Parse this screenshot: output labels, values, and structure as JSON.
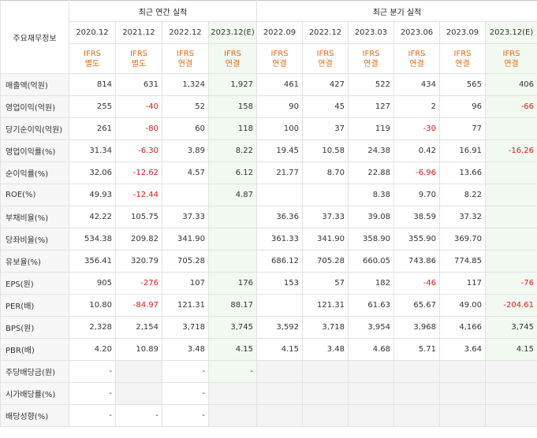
{
  "header": {
    "title": "주요재무정보",
    "annual_group": "최근 연간 실적",
    "quarter_group": "최근 분기 실적"
  },
  "columns": [
    {
      "period": "2020.12",
      "ifrs": "IFRS",
      "basis": "별도"
    },
    {
      "period": "2021.12",
      "ifrs": "IFRS",
      "basis": "별도"
    },
    {
      "period": "2022.12",
      "ifrs": "IFRS",
      "basis": "연결"
    },
    {
      "period": "2023.12(E)",
      "ifrs": "IFRS",
      "basis": "연결"
    },
    {
      "period": "2022.09",
      "ifrs": "IFRS",
      "basis": "연결"
    },
    {
      "period": "2022.12",
      "ifrs": "IFRS",
      "basis": "연결"
    },
    {
      "period": "2023.03",
      "ifrs": "IFRS",
      "basis": "연결"
    },
    {
      "period": "2023.06",
      "ifrs": "IFRS",
      "basis": "연결"
    },
    {
      "period": "2023.09",
      "ifrs": "IFRS",
      "basis": "연결"
    },
    {
      "period": "2023.12(E)",
      "ifrs": "IFRS",
      "basis": "연결"
    }
  ],
  "rows": [
    {
      "label": "매출액(억원)",
      "values": [
        "814",
        "631",
        "1,324",
        "1,927",
        "461",
        "427",
        "522",
        "434",
        "565",
        "406"
      ]
    },
    {
      "label": "영업이익(억원)",
      "values": [
        "255",
        "-40",
        "52",
        "158",
        "90",
        "45",
        "127",
        "2",
        "96",
        "-66"
      ]
    },
    {
      "label": "당기순이익(억원)",
      "values": [
        "261",
        "-80",
        "60",
        "118",
        "100",
        "37",
        "119",
        "-30",
        "77",
        ""
      ]
    },
    {
      "label": "영업이익률(%)",
      "values": [
        "31.34",
        "-6.30",
        "3.89",
        "8.22",
        "19.45",
        "10.58",
        "24.38",
        "0.42",
        "16.91",
        "-16.26"
      ]
    },
    {
      "label": "순이익률(%)",
      "values": [
        "32.06",
        "-12.62",
        "4.57",
        "6.12",
        "21.77",
        "8.70",
        "22.88",
        "-6.96",
        "13.66",
        ""
      ]
    },
    {
      "label": "ROE(%)",
      "values": [
        "49.93",
        "-12.44",
        "",
        "4.87",
        "",
        "",
        "8.38",
        "9.70",
        "8.22",
        ""
      ]
    },
    {
      "label": "부채비율(%)",
      "values": [
        "42.22",
        "105.75",
        "37.33",
        "",
        "36.36",
        "37.33",
        "39.08",
        "38.59",
        "37.32",
        ""
      ]
    },
    {
      "label": "당좌비율(%)",
      "values": [
        "534.38",
        "209.82",
        "341.90",
        "",
        "361.33",
        "341.90",
        "358.90",
        "355.90",
        "369.70",
        ""
      ]
    },
    {
      "label": "유보율(%)",
      "values": [
        "356.41",
        "320.79",
        "705.28",
        "",
        "686.12",
        "705.28",
        "660.05",
        "743.86",
        "774.85",
        ""
      ]
    },
    {
      "label": "EPS(원)",
      "values": [
        "905",
        "-276",
        "107",
        "176",
        "153",
        "57",
        "182",
        "-46",
        "117",
        "-76"
      ]
    },
    {
      "label": "PER(배)",
      "values": [
        "10.80",
        "-84.97",
        "121.31",
        "88.17",
        "",
        "121.31",
        "61.63",
        "65.67",
        "49.00",
        "-204.61"
      ]
    },
    {
      "label": "BPS(원)",
      "values": [
        "2,328",
        "2,154",
        "3,718",
        "3,745",
        "3,592",
        "3,718",
        "3,954",
        "3,968",
        "4,166",
        "3,745"
      ]
    },
    {
      "label": "PBR(배)",
      "values": [
        "4.20",
        "10.89",
        "3.48",
        "4.15",
        "4.15",
        "3.48",
        "4.68",
        "5.71",
        "3.64",
        "4.15"
      ]
    },
    {
      "label": "주당배당금(원)",
      "values": [
        "-",
        "",
        "-",
        "-",
        "",
        "",
        "",
        "",
        "",
        ""
      ]
    },
    {
      "label": "시가배당률(%)",
      "values": [
        "-",
        "",
        "-",
        "",
        "",
        "",
        "",
        "",
        "",
        ""
      ]
    },
    {
      "label": "배당성향(%)",
      "values": [
        "-",
        "-",
        "-",
        "",
        "",
        "",
        "",
        "",
        "",
        ""
      ]
    }
  ]
}
